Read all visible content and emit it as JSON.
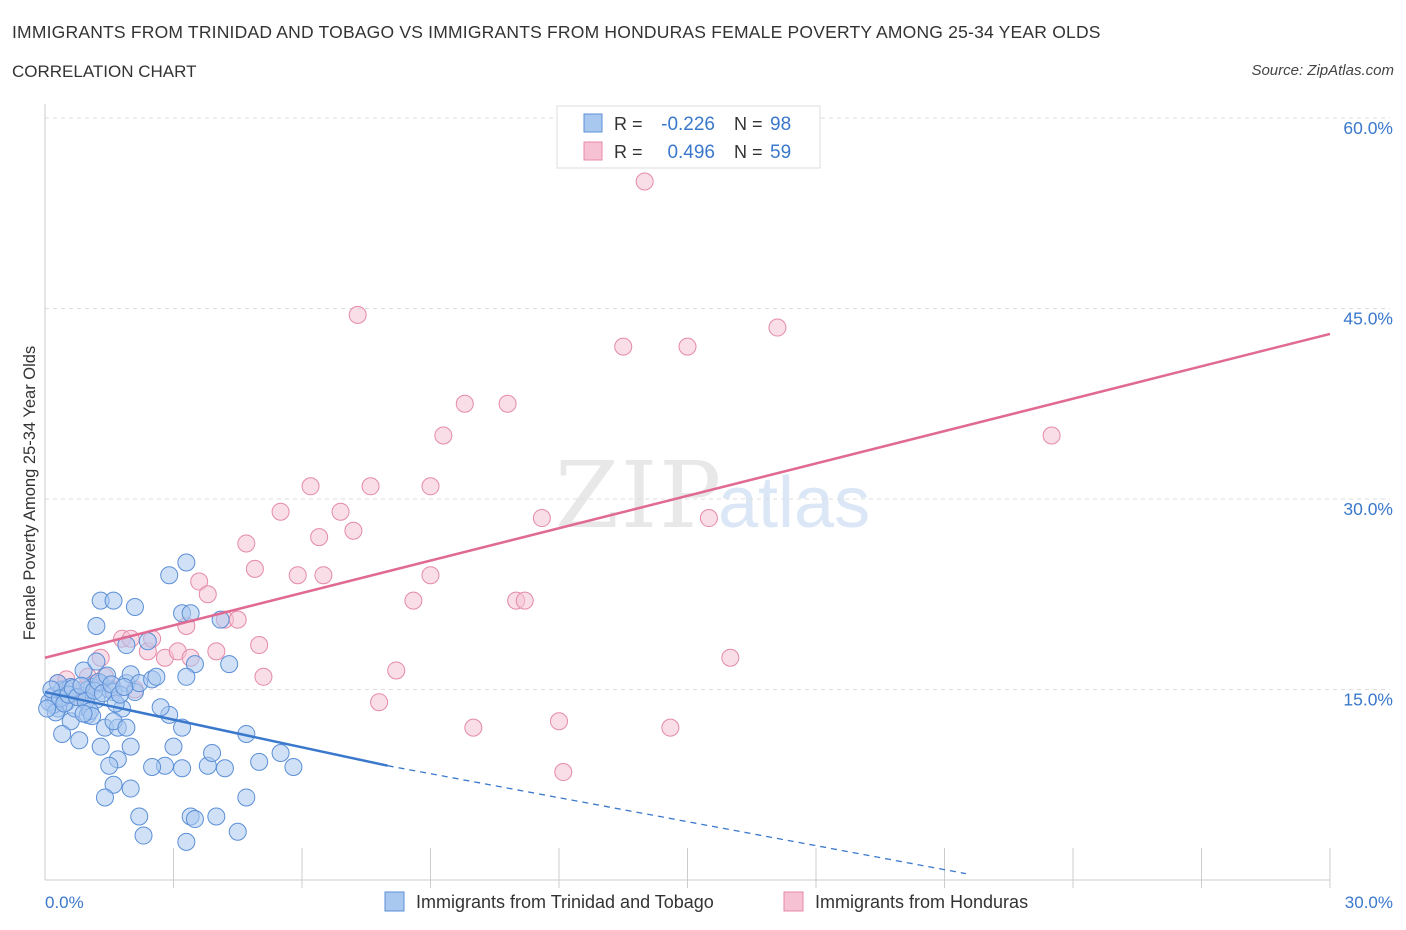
{
  "header": {
    "title": "IMMIGRANTS FROM TRINIDAD AND TOBAGO VS IMMIGRANTS FROM HONDURAS FEMALE POVERTY AMONG 25-34 YEAR OLDS",
    "subtitle": "CORRELATION CHART",
    "source": "Source: ZipAtlas.com"
  },
  "watermark": {
    "zip": "ZIP",
    "atlas": "atlas"
  },
  "legend_top": [
    {
      "r_label": "R =",
      "r_value": "-0.226",
      "n_label": "N =",
      "n_value": "98"
    },
    {
      "r_label": "R =",
      "r_value": "0.496",
      "n_label": "N =",
      "n_value": "59"
    }
  ],
  "legend_bottom": [
    {
      "label": "Immigrants from Trinidad and Tobago"
    },
    {
      "label": "Immigrants from Honduras"
    }
  ],
  "colors": {
    "blue_fill": "#a9c8f0",
    "blue_stroke": "#5b8fd6",
    "blue_line": "#3a78cc",
    "pink_fill": "#f6c2d3",
    "pink_stroke": "#e48aa8",
    "pink_line": "#e06a92",
    "tick_text": "#3a78cc",
    "grid": "#dddddd"
  },
  "chart_data": {
    "type": "scatter",
    "title": "IMMIGRANTS FROM TRINIDAD AND TOBAGO VS IMMIGRANTS FROM HONDURAS FEMALE POVERTY AMONG 25-34 YEAR OLDS",
    "xlabel": "",
    "ylabel": "Female Poverty Among 25-34 Year Olds",
    "xlim": [
      0,
      30
    ],
    "ylim": [
      0,
      60
    ],
    "x_tick_labels": [
      "0.0%",
      "30.0%"
    ],
    "y_tick_labels": [
      "15.0%",
      "30.0%",
      "45.0%",
      "60.0%"
    ],
    "y_ticks": [
      15,
      30,
      45,
      60
    ],
    "grid": true,
    "legend_placement": "bottom",
    "series": [
      {
        "name": "Immigrants from Trinidad and Tobago",
        "color": "#5b8fd6",
        "trend": {
          "x": [
            0,
            8
          ],
          "y": [
            14.8,
            9.0
          ],
          "dashed_to": [
            21.5,
            0.5
          ]
        },
        "points": [
          [
            0.2,
            14.5
          ],
          [
            0.3,
            13.5
          ],
          [
            0.4,
            15.0
          ],
          [
            0.5,
            14.0
          ],
          [
            0.2,
            13.8
          ],
          [
            0.6,
            12.5
          ],
          [
            0.4,
            11.5
          ],
          [
            0.8,
            11.0
          ],
          [
            0.9,
            14.5
          ],
          [
            0.5,
            15.0
          ],
          [
            0.7,
            13.5
          ],
          [
            1.0,
            13.0
          ],
          [
            1.1,
            15.2
          ],
          [
            1.2,
            14.2
          ],
          [
            1.3,
            15.5
          ],
          [
            0.9,
            16.5
          ],
          [
            1.2,
            17.2
          ],
          [
            1.5,
            15.0
          ],
          [
            1.6,
            14.8
          ],
          [
            1.4,
            12.0
          ],
          [
            1.8,
            13.5
          ],
          [
            1.7,
            12.0
          ],
          [
            1.9,
            15.5
          ],
          [
            2.0,
            16.2
          ],
          [
            2.1,
            14.8
          ],
          [
            2.2,
            15.5
          ],
          [
            2.5,
            15.8
          ],
          [
            2.6,
            16.0
          ],
          [
            1.7,
            9.5
          ],
          [
            1.5,
            9.0
          ],
          [
            1.3,
            10.5
          ],
          [
            1.6,
            7.5
          ],
          [
            2.0,
            7.2
          ],
          [
            1.4,
            6.5
          ],
          [
            2.2,
            5.0
          ],
          [
            2.3,
            3.5
          ],
          [
            2.8,
            9.0
          ],
          [
            3.0,
            10.5
          ],
          [
            3.2,
            8.8
          ],
          [
            3.4,
            5.0
          ],
          [
            3.5,
            4.8
          ],
          [
            3.8,
            9.0
          ],
          [
            3.9,
            10.0
          ],
          [
            4.0,
            5.0
          ],
          [
            4.2,
            8.8
          ],
          [
            4.5,
            3.8
          ],
          [
            4.7,
            6.5
          ],
          [
            4.7,
            11.5
          ],
          [
            5.0,
            9.3
          ],
          [
            5.5,
            10.0
          ],
          [
            5.8,
            8.9
          ],
          [
            1.2,
            20.0
          ],
          [
            1.3,
            22.0
          ],
          [
            1.6,
            22.0
          ],
          [
            1.9,
            18.5
          ],
          [
            2.1,
            21.5
          ],
          [
            2.4,
            18.8
          ],
          [
            2.9,
            24.0
          ],
          [
            3.3,
            25.0
          ],
          [
            3.2,
            21.0
          ],
          [
            3.4,
            21.0
          ],
          [
            3.5,
            17.0
          ],
          [
            3.3,
            16.0
          ],
          [
            4.1,
            20.5
          ],
          [
            4.3,
            17.0
          ],
          [
            1.6,
            12.5
          ],
          [
            1.9,
            12.0
          ],
          [
            2.0,
            10.5
          ],
          [
            2.9,
            13.0
          ],
          [
            3.2,
            12.0
          ],
          [
            3.3,
            3.0
          ],
          [
            2.5,
            8.9
          ],
          [
            1.0,
            15.0
          ],
          [
            0.6,
            15.2
          ],
          [
            0.3,
            15.5
          ],
          [
            0.1,
            14.0
          ],
          [
            0.15,
            15.0
          ],
          [
            0.25,
            13.2
          ],
          [
            0.35,
            14.3
          ],
          [
            0.45,
            13.9
          ],
          [
            0.55,
            14.6
          ],
          [
            0.65,
            15.1
          ],
          [
            0.75,
            14.4
          ],
          [
            0.85,
            15.3
          ],
          [
            0.95,
            14.1
          ],
          [
            1.05,
            13.3
          ],
          [
            1.15,
            14.9
          ],
          [
            1.25,
            15.6
          ],
          [
            1.35,
            14.7
          ],
          [
            1.45,
            16.1
          ],
          [
            1.55,
            15.4
          ],
          [
            1.65,
            13.9
          ],
          [
            1.75,
            14.6
          ],
          [
            1.85,
            15.2
          ],
          [
            2.7,
            13.6
          ],
          [
            0.05,
            13.5
          ],
          [
            1.1,
            12.9
          ],
          [
            0.9,
            13.1
          ]
        ]
      },
      {
        "name": "Immigrants from Honduras",
        "color": "#e48aa8",
        "trend": {
          "x": [
            0,
            30
          ],
          "y": [
            17.5,
            43.0
          ]
        },
        "points": [
          [
            0.2,
            14.5
          ],
          [
            0.3,
            15.5
          ],
          [
            0.5,
            15.8
          ],
          [
            0.7,
            14.5
          ],
          [
            0.9,
            15.0
          ],
          [
            1.0,
            16.0
          ],
          [
            1.2,
            15.5
          ],
          [
            1.4,
            16.0
          ],
          [
            1.6,
            15.0
          ],
          [
            1.3,
            17.5
          ],
          [
            1.8,
            19.0
          ],
          [
            2.0,
            19.0
          ],
          [
            2.1,
            15.0
          ],
          [
            2.4,
            18.0
          ],
          [
            2.5,
            19.0
          ],
          [
            2.8,
            17.5
          ],
          [
            3.1,
            18.0
          ],
          [
            3.3,
            20.0
          ],
          [
            3.4,
            17.5
          ],
          [
            3.6,
            23.5
          ],
          [
            3.8,
            22.5
          ],
          [
            4.0,
            18.0
          ],
          [
            4.2,
            20.5
          ],
          [
            4.5,
            20.5
          ],
          [
            4.7,
            26.5
          ],
          [
            4.9,
            24.5
          ],
          [
            5.0,
            18.5
          ],
          [
            5.1,
            16.0
          ],
          [
            5.5,
            29.0
          ],
          [
            5.9,
            24.0
          ],
          [
            6.2,
            31.0
          ],
          [
            6.4,
            27.0
          ],
          [
            6.5,
            24.0
          ],
          [
            6.9,
            29.0
          ],
          [
            7.2,
            27.5
          ],
          [
            7.3,
            44.5
          ],
          [
            7.6,
            31.0
          ],
          [
            7.8,
            14.0
          ],
          [
            8.2,
            16.5
          ],
          [
            8.6,
            22.0
          ],
          [
            9.0,
            24.0
          ],
          [
            9.0,
            31.0
          ],
          [
            9.3,
            35.0
          ],
          [
            9.8,
            37.5
          ],
          [
            10.0,
            12.0
          ],
          [
            10.8,
            37.5
          ],
          [
            11.0,
            22.0
          ],
          [
            11.2,
            22.0
          ],
          [
            11.6,
            28.5
          ],
          [
            12.0,
            12.5
          ],
          [
            12.1,
            8.5
          ],
          [
            13.5,
            42.0
          ],
          [
            14.0,
            55.0
          ],
          [
            14.6,
            12.0
          ],
          [
            15.0,
            42.0
          ],
          [
            15.5,
            28.5
          ],
          [
            16.0,
            17.5
          ],
          [
            17.1,
            43.5
          ],
          [
            23.5,
            35.0
          ]
        ]
      }
    ]
  }
}
